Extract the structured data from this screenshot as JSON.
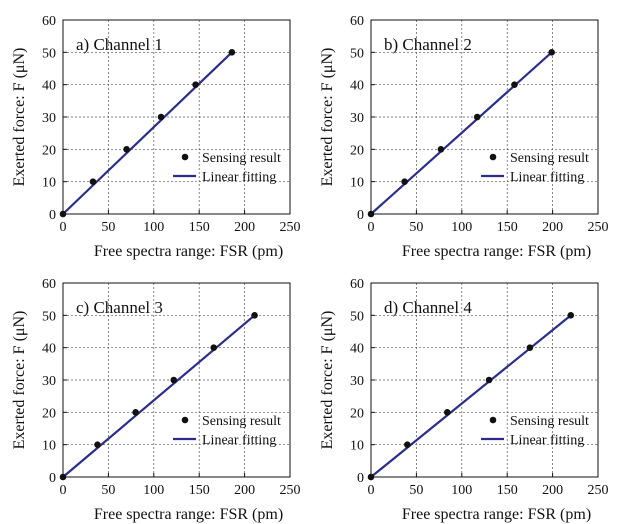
{
  "chart_data": [
    {
      "type": "scatter",
      "title": "a) Channel 1",
      "xlabel": "Free spectra range: FSR (pm)",
      "ylabel": "Exerted force: F (μN)",
      "xlim": [
        0,
        250
      ],
      "ylim": [
        0,
        60
      ],
      "xticks": [
        0,
        50,
        100,
        150,
        200,
        250
      ],
      "yticks": [
        0,
        10,
        20,
        30,
        40,
        50,
        60
      ],
      "grid": true,
      "legend_position": "right-center",
      "series": [
        {
          "name": "Sensing result",
          "kind": "points",
          "x": [
            0,
            33,
            70,
            108,
            146,
            186
          ],
          "y": [
            0,
            10,
            20,
            30,
            40,
            50
          ]
        },
        {
          "name": "Linear fitting",
          "kind": "line",
          "x": [
            0,
            186
          ],
          "y": [
            0,
            50
          ]
        }
      ]
    },
    {
      "type": "scatter",
      "title": "b) Channel 2",
      "xlabel": "Free spectra range: FSR (pm)",
      "ylabel": "Exerted force: F (μN)",
      "xlim": [
        0,
        250
      ],
      "ylim": [
        0,
        60
      ],
      "xticks": [
        0,
        50,
        100,
        150,
        200,
        250
      ],
      "yticks": [
        0,
        10,
        20,
        30,
        40,
        50,
        60
      ],
      "grid": true,
      "legend_position": "right-center",
      "series": [
        {
          "name": "Sensing result",
          "kind": "points",
          "x": [
            0,
            37,
            77,
            117,
            158,
            199
          ],
          "y": [
            0,
            10,
            20,
            30,
            40,
            50
          ]
        },
        {
          "name": "Linear fitting",
          "kind": "line",
          "x": [
            0,
            199
          ],
          "y": [
            0,
            50
          ]
        }
      ]
    },
    {
      "type": "scatter",
      "title": "c) Channel 3",
      "xlabel": "Free spectra range: FSR (pm)",
      "ylabel": "Exerted force: F (μN)",
      "xlim": [
        0,
        250
      ],
      "ylim": [
        0,
        60
      ],
      "xticks": [
        0,
        50,
        100,
        150,
        200,
        250
      ],
      "yticks": [
        0,
        10,
        20,
        30,
        40,
        50,
        60
      ],
      "grid": true,
      "legend_position": "right-center",
      "series": [
        {
          "name": "Sensing result",
          "kind": "points",
          "x": [
            0,
            38,
            80,
            122,
            166,
            211
          ],
          "y": [
            0,
            10,
            20,
            30,
            40,
            50
          ]
        },
        {
          "name": "Linear fitting",
          "kind": "line",
          "x": [
            0,
            211
          ],
          "y": [
            0,
            50
          ]
        }
      ]
    },
    {
      "type": "scatter",
      "title": "d) Channel 4",
      "xlabel": "Free spectra range: FSR (pm)",
      "ylabel": "Exerted force: F (μN)",
      "xlim": [
        0,
        250
      ],
      "ylim": [
        0,
        60
      ],
      "xticks": [
        0,
        50,
        100,
        150,
        200,
        250
      ],
      "yticks": [
        0,
        10,
        20,
        30,
        40,
        50,
        60
      ],
      "grid": true,
      "legend_position": "right-center",
      "series": [
        {
          "name": "Sensing result",
          "kind": "points",
          "x": [
            0,
            40,
            84,
            130,
            175,
            220
          ],
          "y": [
            0,
            10,
            20,
            30,
            40,
            50
          ]
        },
        {
          "name": "Linear fitting",
          "kind": "line",
          "x": [
            0,
            220
          ],
          "y": [
            0,
            50
          ]
        }
      ]
    }
  ],
  "colors": {
    "fit_line": "#2b2d8c",
    "points": "#111111",
    "grid": "#555555"
  }
}
